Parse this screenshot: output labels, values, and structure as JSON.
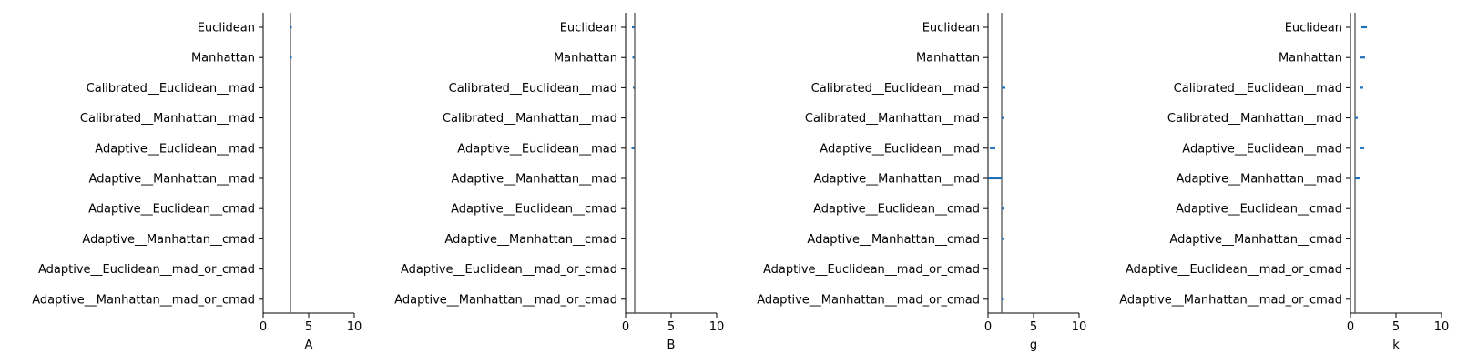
{
  "colors": {
    "reference_line": "#555555",
    "interval": "#1f6fb8",
    "axis": "#000000"
  },
  "chart_data": [
    {
      "type": "interval",
      "xlabel": "A",
      "xlim": [
        0,
        10
      ],
      "xticks": [
        "0",
        "5",
        "10"
      ],
      "categories": [
        "Euclidean",
        "Manhattan",
        "Calibrated__Euclidean__mad",
        "Calibrated__Manhattan__mad",
        "Adaptive__Euclidean__mad",
        "Adaptive__Manhattan__mad",
        "Adaptive__Euclidean__cmad",
        "Adaptive__Manhattan__cmad",
        "Adaptive__Euclidean__mad_or_cmad",
        "Adaptive__Manhattan__mad_or_cmad"
      ],
      "reference": 3.0,
      "intervals": [
        [
          3.0,
          3.15
        ],
        [
          3.0,
          3.12
        ],
        null,
        null,
        null,
        null,
        null,
        null,
        null,
        null
      ],
      "grid": false
    },
    {
      "type": "interval",
      "xlabel": "B",
      "xlim": [
        0,
        10
      ],
      "xticks": [
        "0",
        "5",
        "10"
      ],
      "categories": [
        "Euclidean",
        "Manhattan",
        "Calibrated__Euclidean__mad",
        "Calibrated__Manhattan__mad",
        "Adaptive__Euclidean__mad",
        "Adaptive__Manhattan__mad",
        "Adaptive__Euclidean__cmad",
        "Adaptive__Manhattan__cmad",
        "Adaptive__Euclidean__mad_or_cmad",
        "Adaptive__Manhattan__mad_or_cmad"
      ],
      "reference": 1.0,
      "intervals": [
        [
          0.7,
          0.95
        ],
        [
          0.75,
          0.95
        ],
        [
          0.8,
          0.95
        ],
        null,
        [
          0.65,
          0.95
        ],
        null,
        null,
        null,
        null,
        null
      ],
      "grid": false
    },
    {
      "type": "interval",
      "xlabel": "g",
      "xlim": [
        0,
        10
      ],
      "xticks": [
        "0",
        "5",
        "10"
      ],
      "categories": [
        "Euclidean",
        "Manhattan",
        "Calibrated__Euclidean__mad",
        "Calibrated__Manhattan__mad",
        "Adaptive__Euclidean__mad",
        "Adaptive__Manhattan__mad",
        "Adaptive__Euclidean__cmad",
        "Adaptive__Manhattan__cmad",
        "Adaptive__Euclidean__mad_or_cmad",
        "Adaptive__Manhattan__mad_or_cmad"
      ],
      "reference": 1.5,
      "intervals": [
        null,
        null,
        [
          1.5,
          1.9
        ],
        [
          1.5,
          1.7
        ],
        [
          0.2,
          0.8
        ],
        [
          0.0,
          1.5
        ],
        [
          1.5,
          1.7
        ],
        [
          1.5,
          1.7
        ],
        null,
        [
          1.5,
          1.65
        ]
      ],
      "grid": false
    },
    {
      "type": "interval",
      "xlabel": "k",
      "xlim": [
        0,
        10
      ],
      "xticks": [
        "0",
        "5",
        "10"
      ],
      "categories": [
        "Euclidean",
        "Manhattan",
        "Calibrated__Euclidean__mad",
        "Calibrated__Manhattan__mad",
        "Adaptive__Euclidean__mad",
        "Adaptive__Manhattan__mad",
        "Adaptive__Euclidean__cmad",
        "Adaptive__Manhattan__cmad",
        "Adaptive__Euclidean__mad_or_cmad",
        "Adaptive__Manhattan__mad_or_cmad"
      ],
      "reference": 0.5,
      "intervals": [
        [
          1.2,
          1.8
        ],
        [
          1.1,
          1.6
        ],
        [
          1.0,
          1.4
        ],
        [
          0.5,
          0.8
        ],
        [
          1.1,
          1.5
        ],
        [
          0.5,
          1.1
        ],
        null,
        null,
        null,
        null
      ],
      "grid": false
    }
  ]
}
